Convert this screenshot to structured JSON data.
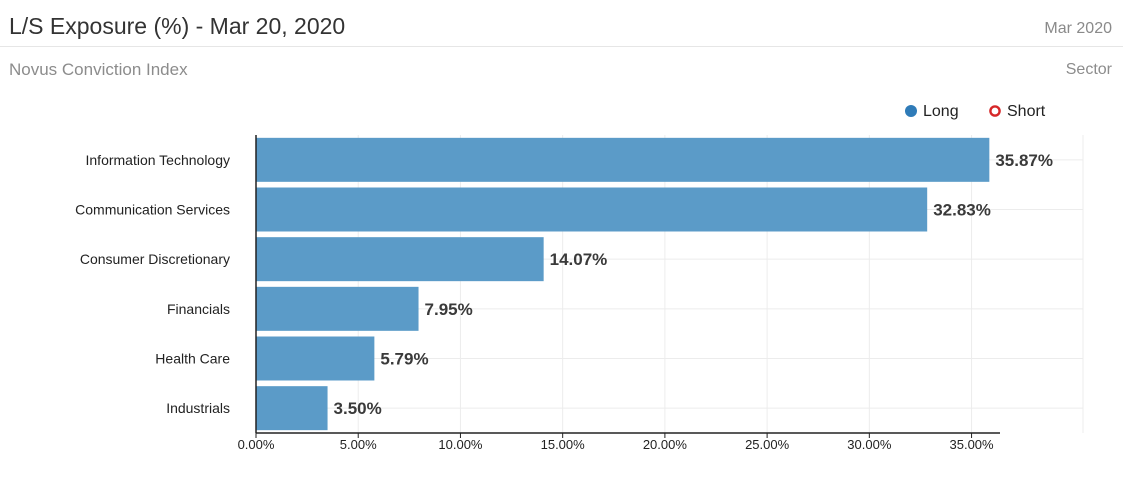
{
  "header": {
    "title": "L/S Exposure (%) - Mar 20, 2020",
    "date": "Mar 2020",
    "subtitle": "Novus Conviction Index",
    "dimension": "Sector"
  },
  "colors": {
    "long": "#5b9bc8",
    "long_legend": "#2f7bb8",
    "short": "#d62728",
    "grid": "#ececec",
    "axis": "#222222"
  },
  "chart_data": {
    "type": "bar",
    "orientation": "horizontal",
    "categories": [
      "Information Technology",
      "Communication Services",
      "Consumer Discretionary",
      "Financials",
      "Health Care",
      "Industrials"
    ],
    "series": [
      {
        "name": "Long",
        "values": [
          35.87,
          32.83,
          14.07,
          7.95,
          5.79,
          3.5
        ],
        "labels": [
          "35.87%",
          "32.83%",
          "14.07%",
          "7.95%",
          "5.79%",
          "3.50%"
        ]
      }
    ],
    "legend": [
      {
        "name": "Long",
        "marker": "filled-circle"
      },
      {
        "name": "Short",
        "marker": "hollow-circle"
      }
    ],
    "legend_position": "top-right",
    "xlim": [
      0,
      36
    ],
    "xticks": [
      0,
      5,
      10,
      15,
      20,
      25,
      30,
      35
    ],
    "xtick_labels": [
      "0.00%",
      "5.00%",
      "10.00%",
      "15.00%",
      "20.00%",
      "25.00%",
      "30.00%",
      "35.00%"
    ],
    "grid": true
  }
}
